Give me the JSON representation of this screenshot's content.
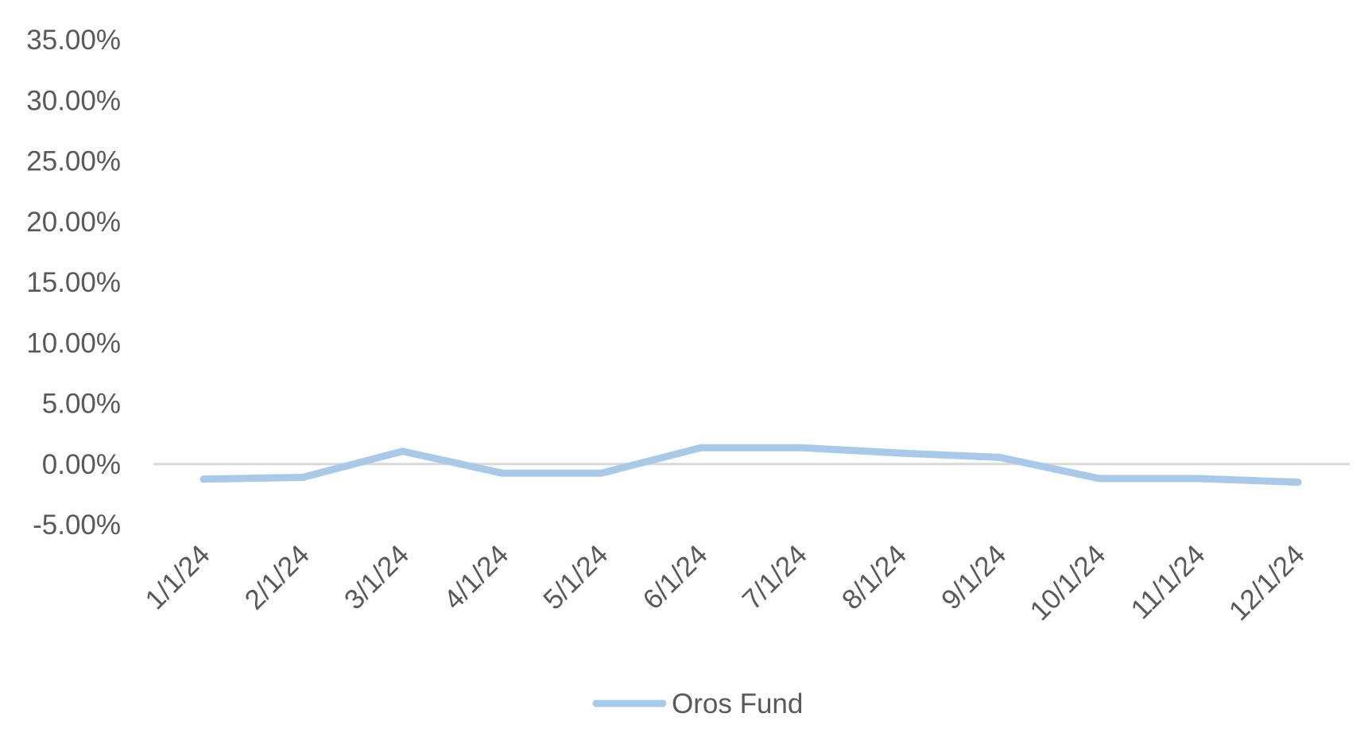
{
  "chart_data": {
    "type": "line",
    "title": "",
    "xlabel": "",
    "ylabel": "",
    "categories": [
      "1/1/24",
      "2/1/24",
      "3/1/24",
      "4/1/24",
      "5/1/24",
      "6/1/24",
      "7/1/24",
      "8/1/24",
      "9/1/24",
      "10/1/24",
      "11/1/24",
      "12/1/24"
    ],
    "series": [
      {
        "name": "Oros Fund",
        "color": "#a9c9e9",
        "values": [
          -1.25,
          -1.1,
          1.05,
          -0.75,
          -0.75,
          1.35,
          1.35,
          0.9,
          0.55,
          -1.2,
          -1.2,
          -1.5
        ]
      }
    ],
    "y_ticks": [
      "35.00%",
      "30.00%",
      "25.00%",
      "20.00%",
      "15.00%",
      "10.00%",
      "5.00%",
      "0.00%",
      "-5.00%"
    ],
    "ylim": [
      -5,
      35
    ],
    "grid": false,
    "zero_line_color": "#d9d9d9",
    "legend_position": "bottom"
  }
}
